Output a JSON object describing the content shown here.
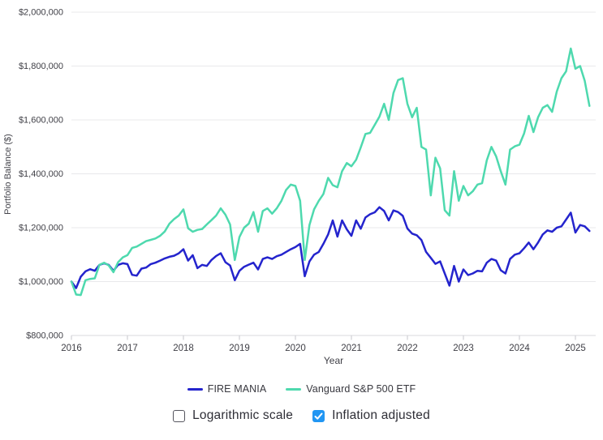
{
  "chart_data": {
    "type": "line",
    "title": "",
    "xlabel": "Year",
    "ylabel": "Portfolio Balance ($)",
    "x_unit": "month",
    "x_range": [
      "2016-01",
      "2025-04"
    ],
    "x_tick_labels": [
      "2016",
      "2017",
      "2018",
      "2019",
      "2020",
      "2021",
      "2022",
      "2023",
      "2024",
      "2025"
    ],
    "ylim": [
      800000,
      2000000
    ],
    "y_ticks": [
      800000,
      1000000,
      1200000,
      1400000,
      1600000,
      1800000,
      2000000
    ],
    "y_tick_labels": [
      "$800,000",
      "$1,000,000",
      "$1,200,000",
      "$1,400,000",
      "$1,600,000",
      "$1,800,000",
      "$2,000,000"
    ],
    "grid": "horizontal",
    "legend_position": "bottom",
    "series": [
      {
        "name": "FIRE MANIA",
        "color": "#2424cd",
        "values": [
          1000000,
          976000,
          1018000,
          1038000,
          1046000,
          1040000,
          1062000,
          1068000,
          1062000,
          1040000,
          1062000,
          1068000,
          1065000,
          1025000,
          1022000,
          1048000,
          1052000,
          1065000,
          1070000,
          1078000,
          1086000,
          1092000,
          1096000,
          1105000,
          1120000,
          1078000,
          1098000,
          1050000,
          1062000,
          1058000,
          1080000,
          1095000,
          1105000,
          1072000,
          1060000,
          1005000,
          1040000,
          1055000,
          1063000,
          1070000,
          1045000,
          1084000,
          1090000,
          1084000,
          1094000,
          1100000,
          1110000,
          1120000,
          1128000,
          1140000,
          1020000,
          1075000,
          1100000,
          1110000,
          1140000,
          1175000,
          1227000,
          1167000,
          1227000,
          1194000,
          1170000,
          1227000,
          1196000,
          1238000,
          1250000,
          1257000,
          1276000,
          1262000,
          1227000,
          1264000,
          1258000,
          1244000,
          1197000,
          1178000,
          1172000,
          1154000,
          1110000,
          1088000,
          1066000,
          1075000,
          1030000,
          985000,
          1058000,
          1000000,
          1045000,
          1024000,
          1030000,
          1040000,
          1038000,
          1070000,
          1084000,
          1078000,
          1042000,
          1030000,
          1084000,
          1100000,
          1105000,
          1124000,
          1145000,
          1120000,
          1145000,
          1175000,
          1190000,
          1185000,
          1200000,
          1205000,
          1230000,
          1256000,
          1182000,
          1210000,
          1205000,
          1188000
        ]
      },
      {
        "name": "Vanguard S&P 500 ETF",
        "color": "#4ed9ae",
        "values": [
          1000000,
          952000,
          950000,
          1005000,
          1010000,
          1012000,
          1062000,
          1070000,
          1060000,
          1035000,
          1072000,
          1090000,
          1098000,
          1125000,
          1130000,
          1140000,
          1150000,
          1155000,
          1160000,
          1170000,
          1186000,
          1215000,
          1232000,
          1245000,
          1268000,
          1198000,
          1185000,
          1192000,
          1195000,
          1212000,
          1228000,
          1245000,
          1272000,
          1248000,
          1212000,
          1080000,
          1165000,
          1200000,
          1215000,
          1258000,
          1185000,
          1262000,
          1272000,
          1252000,
          1272000,
          1300000,
          1340000,
          1360000,
          1355000,
          1300000,
          1080000,
          1210000,
          1268000,
          1300000,
          1325000,
          1385000,
          1358000,
          1350000,
          1410000,
          1440000,
          1428000,
          1452000,
          1498000,
          1548000,
          1552000,
          1582000,
          1612000,
          1660000,
          1600000,
          1700000,
          1748000,
          1755000,
          1660000,
          1610000,
          1645000,
          1500000,
          1490000,
          1320000,
          1460000,
          1420000,
          1265000,
          1245000,
          1410000,
          1300000,
          1355000,
          1320000,
          1335000,
          1360000,
          1365000,
          1450000,
          1500000,
          1465000,
          1410000,
          1360000,
          1490000,
          1502000,
          1508000,
          1550000,
          1615000,
          1555000,
          1610000,
          1645000,
          1655000,
          1630000,
          1705000,
          1755000,
          1780000,
          1865000,
          1790000,
          1800000,
          1745000,
          1652000
        ]
      }
    ]
  },
  "controls": {
    "items": [
      {
        "label": "Logarithmic scale",
        "checked": false
      },
      {
        "label": "Inflation adjusted",
        "checked": true
      }
    ]
  },
  "colors": {
    "checkbox_checked": "#2196f3",
    "grid": "#e8e8eb",
    "axis_line": "#d9d9dd",
    "tick_mark": "#c7c7cc",
    "tick_text": "#3f3f46",
    "legend_text": "#38383f"
  }
}
